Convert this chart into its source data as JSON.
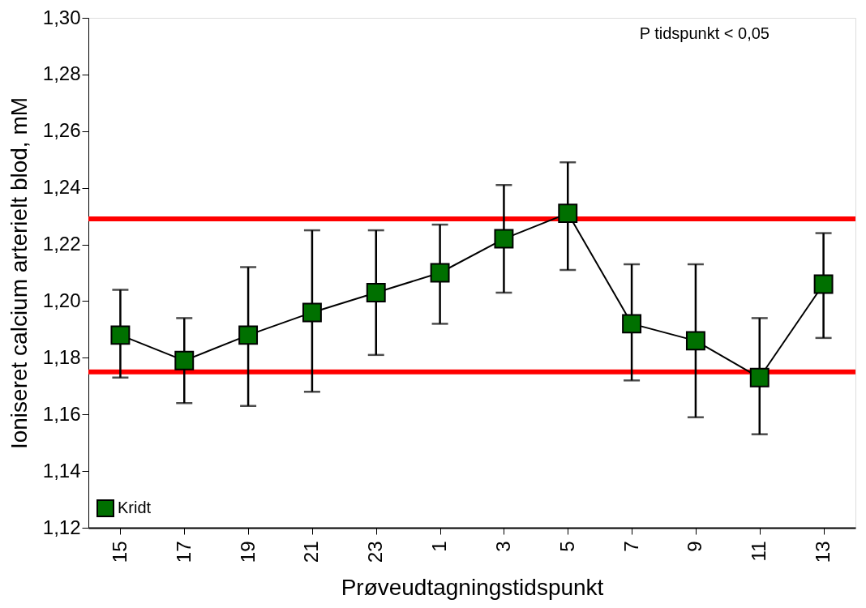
{
  "chart_data": {
    "type": "line",
    "xlabel": "Prøveudtagningstidspunkt",
    "ylabel": "Ioniseret calcium arterielt blod, mM",
    "categories": [
      "15",
      "17",
      "19",
      "21",
      "23",
      "1",
      "3",
      "5",
      "7",
      "9",
      "11",
      "13"
    ],
    "series": [
      {
        "name": "Kridt",
        "color": "#007000",
        "values": [
          1.188,
          1.179,
          1.188,
          1.196,
          1.203,
          1.21,
          1.222,
          1.231,
          1.192,
          1.186,
          1.173,
          1.206
        ],
        "errors": [
          [
            1.173,
            1.204
          ],
          [
            1.164,
            1.194
          ],
          [
            1.163,
            1.212
          ],
          [
            1.168,
            1.225
          ],
          [
            1.181,
            1.225
          ],
          [
            1.192,
            1.227
          ],
          [
            1.203,
            1.241
          ],
          [
            1.211,
            1.249
          ],
          [
            1.172,
            1.213
          ],
          [
            1.159,
            1.213
          ],
          [
            1.153,
            1.194
          ],
          [
            1.187,
            1.224
          ]
        ]
      }
    ],
    "ylim": [
      1.12,
      1.3
    ],
    "yticks": [
      {
        "value": 1.12,
        "label": "1,12"
      },
      {
        "value": 1.14,
        "label": "1,14"
      },
      {
        "value": 1.16,
        "label": "1,16"
      },
      {
        "value": 1.18,
        "label": "1,18"
      },
      {
        "value": 1.2,
        "label": "1,20"
      },
      {
        "value": 1.22,
        "label": "1,22"
      },
      {
        "value": 1.24,
        "label": "1,24"
      },
      {
        "value": 1.26,
        "label": "1,26"
      },
      {
        "value": 1.28,
        "label": "1,28"
      },
      {
        "value": 1.3,
        "label": "1,30"
      }
    ],
    "ref_lines": [
      {
        "axis": "y",
        "value": 1.229,
        "color": "#ff0000"
      },
      {
        "axis": "y",
        "value": 1.175,
        "color": "#ff0000"
      }
    ],
    "annotations": [
      "P tidspunkt < 0,05"
    ],
    "marker": "square",
    "line_style": "solid",
    "legend": "bottom left",
    "grid": false
  }
}
